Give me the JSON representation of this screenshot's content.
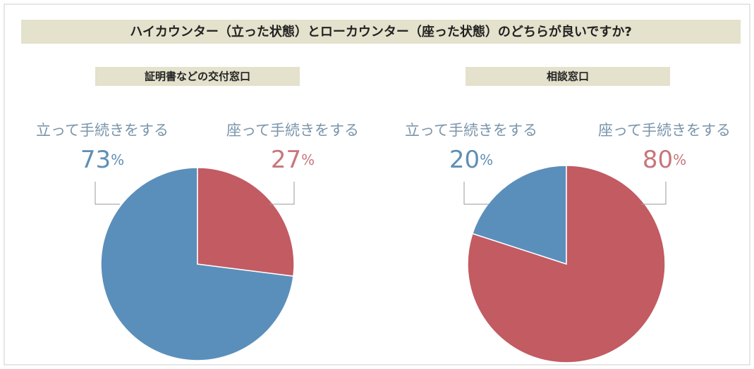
{
  "title": "ハイカウンター（立った状態）とローカウンター（座った状態）のどちらが良いですか?",
  "chart_data": [
    {
      "type": "pie",
      "title": "証明書などの交付窓口",
      "categories": [
        "立って手続きをする",
        "座って手続きをする"
      ],
      "values": [
        73,
        27
      ],
      "value_labels": [
        "73%",
        "27%"
      ],
      "colors": [
        "#5b8fbb",
        "#c25b62"
      ]
    },
    {
      "type": "pie",
      "title": "相談窓口",
      "categories": [
        "立って手続きをする",
        "座って手続きをする"
      ],
      "values": [
        20,
        80
      ],
      "value_labels": [
        "20%",
        "80%"
      ],
      "colors": [
        "#5b8fbb",
        "#c25b62"
      ]
    }
  ]
}
